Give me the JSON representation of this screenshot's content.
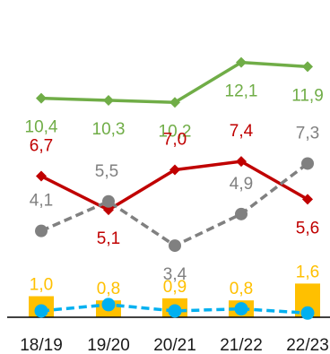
{
  "chart_data": {
    "type": "line",
    "title": "",
    "xlabel": "",
    "ylabel": "",
    "categories": [
      "18/19",
      "19/20",
      "20/21",
      "21/22",
      "22/23"
    ],
    "ylim": [
      0,
      13
    ],
    "grid": false,
    "legend": "none",
    "series": [
      {
        "type": "line",
        "color": "#70ad47",
        "marker": "diamond",
        "dashed": false,
        "values": [
          10.4,
          10.3,
          10.2,
          12.1,
          11.9
        ],
        "labels": [
          "10,4",
          "10,3",
          "10,2",
          "12,1",
          "11,9"
        ],
        "label_position": "below"
      },
      {
        "type": "line",
        "color": "#c00000",
        "marker": "diamond",
        "dashed": false,
        "values": [
          6.7,
          5.1,
          7.0,
          7.4,
          5.6
        ],
        "labels": [
          "6,7",
          "5,1",
          "7,0",
          "7,4",
          "5,6"
        ],
        "label_position": [
          "above",
          "below",
          "above",
          "above",
          "below"
        ]
      },
      {
        "type": "line",
        "color": "#808080",
        "marker": "circle",
        "dashed": true,
        "values": [
          4.1,
          5.5,
          3.4,
          4.9,
          7.3
        ],
        "labels": [
          "4,1",
          "5,5",
          "3,4",
          "4,9",
          "7,3"
        ],
        "label_position": [
          "above",
          "above",
          "below",
          "above",
          "above"
        ]
      },
      {
        "type": "bar",
        "color": "#ffc000",
        "values": [
          1.0,
          0.8,
          0.9,
          0.8,
          1.6
        ],
        "labels": [
          "1,0",
          "0,8",
          "0,9",
          "0,8",
          "1,6"
        ],
        "label_position": "above"
      },
      {
        "type": "line",
        "color": "#00b0f0",
        "marker": "circle",
        "dashed": true,
        "values": [
          0.3,
          0.6,
          0.3,
          0.4,
          0.2
        ],
        "labels": [],
        "label_position": "none"
      }
    ]
  }
}
